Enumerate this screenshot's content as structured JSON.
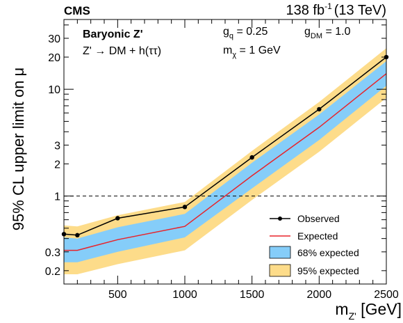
{
  "header": {
    "experiment": "CMS",
    "luminosity": "138 fb",
    "luminosity_exp": "-1",
    "energy": "(13 TeV)"
  },
  "annotations": {
    "model": "Baryonic Z'",
    "process": "Z' → DM + h(ττ)",
    "gq_label": "g",
    "gq_sub": "q",
    "gq_value": " = 0.25",
    "gdm_label": "g",
    "gdm_sub": "DM",
    "gdm_value": " = 1.0",
    "mchi_label": "m",
    "mchi_sub": "χ",
    "mchi_value": " = 1 GeV"
  },
  "axes": {
    "ylabel": "95% CL upper limit on μ",
    "xlabel_main": "m",
    "xlabel_sub": "Z'",
    "xlabel_unit": " [GeV]"
  },
  "legend": {
    "observed": "Observed",
    "expected": "Expected",
    "band68": "68% expected",
    "band95": "95% expected"
  },
  "colors": {
    "band68": "#85cdf9",
    "band95": "#fddc8a",
    "expected": "#e8232a",
    "observed": "#000000",
    "reference": "#000000"
  },
  "chart_data": {
    "type": "line",
    "title": "",
    "xlabel": "m_Z' [GeV]",
    "ylabel": "95% CL upper limit on μ",
    "xlim": [
      100,
      2500
    ],
    "ylim": [
      0.15,
      45
    ],
    "yscale": "log",
    "x_ticks": [
      500,
      1000,
      1500,
      2000,
      2500
    ],
    "y_ticks": [
      0.2,
      0.3,
      1,
      2,
      3,
      10,
      20,
      30
    ],
    "reference_line": 1.0,
    "x": [
      100,
      200,
      500,
      1000,
      1500,
      2000,
      2500
    ],
    "series": [
      {
        "name": "Observed",
        "values": [
          0.44,
          0.43,
          0.62,
          0.79,
          2.3,
          6.5,
          20.0
        ]
      },
      {
        "name": "Expected",
        "values": [
          0.31,
          0.31,
          0.39,
          0.52,
          1.55,
          4.4,
          14.0
        ]
      },
      {
        "name": "68% expected",
        "lower": [
          0.24,
          0.24,
          0.3,
          0.41,
          1.18,
          3.35,
          10.8
        ],
        "upper": [
          0.41,
          0.4,
          0.51,
          0.68,
          2.05,
          5.8,
          18.3
        ]
      },
      {
        "name": "95% expected",
        "lower": [
          0.185,
          0.185,
          0.23,
          0.31,
          0.92,
          2.6,
          8.3
        ],
        "upper": [
          0.53,
          0.52,
          0.66,
          0.88,
          2.65,
          7.6,
          24.2
        ]
      }
    ],
    "grid": false,
    "legend_position": "bottom-right"
  }
}
